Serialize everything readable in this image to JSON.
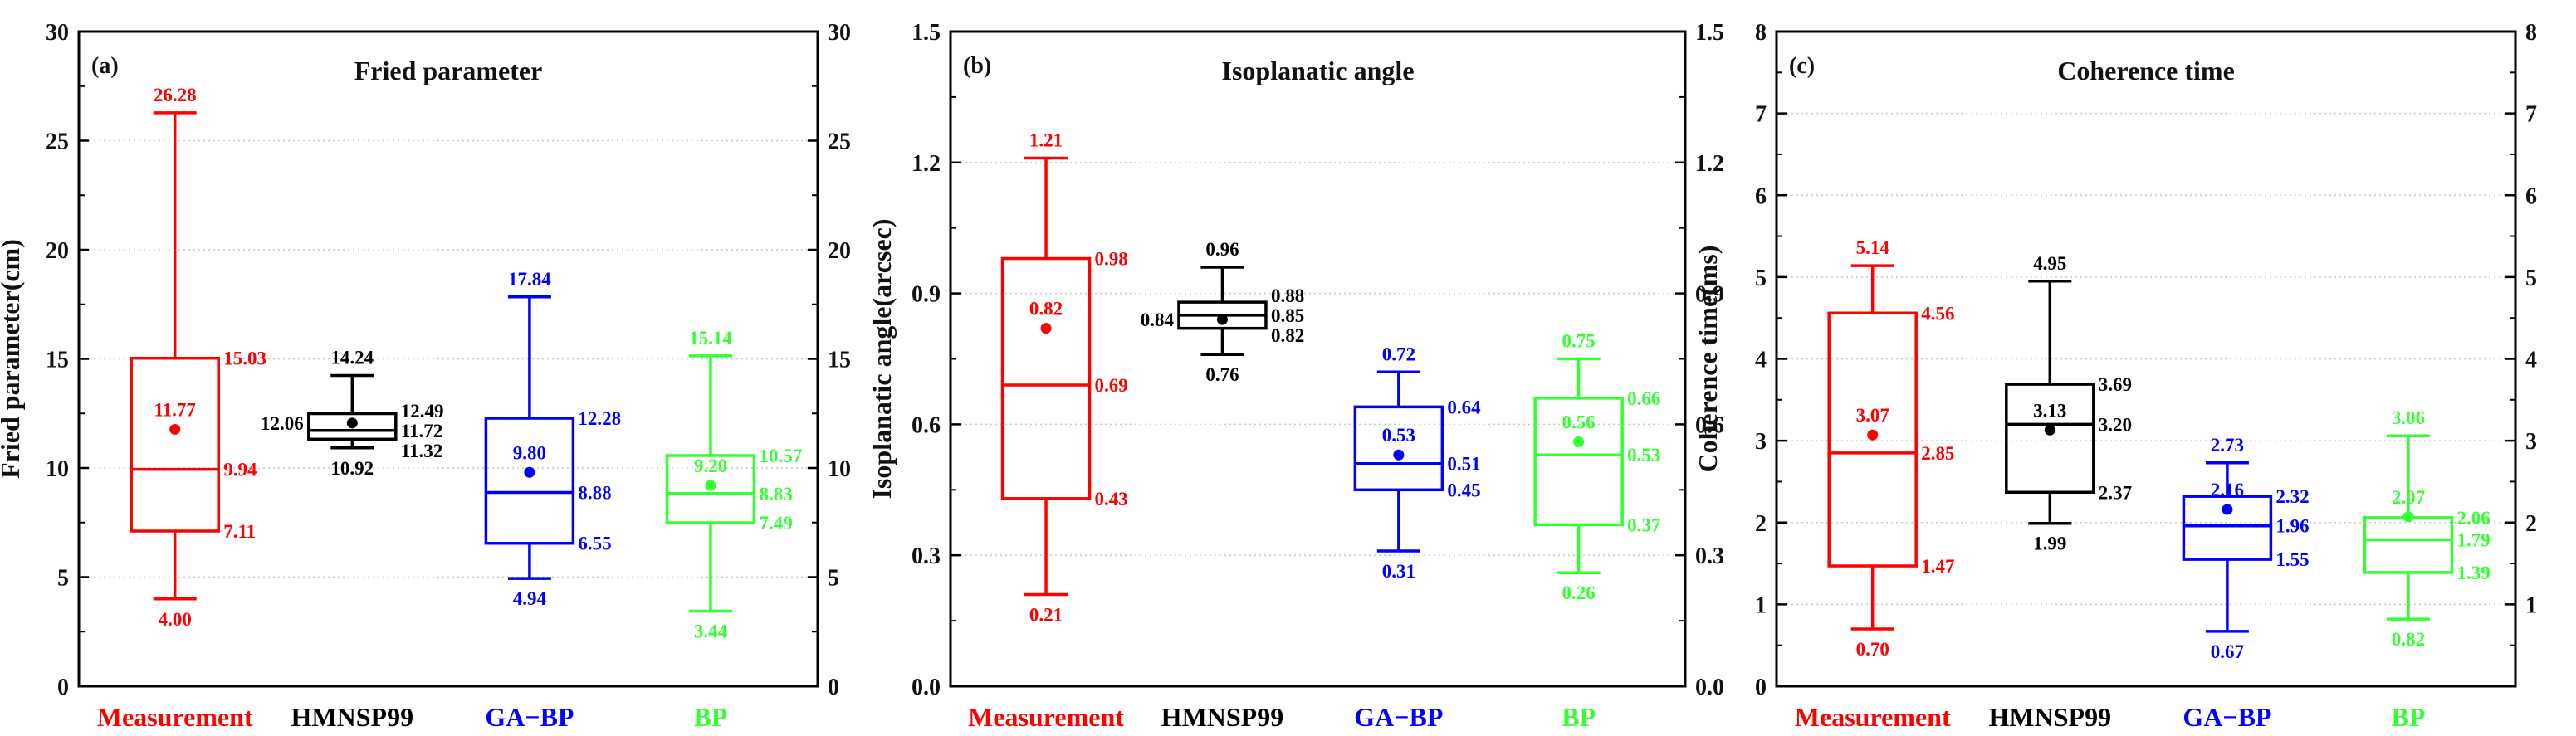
{
  "chart_data": [
    {
      "type": "box",
      "panel_letter": "(a)",
      "title": "Fried parameter",
      "ylabel": "Fried parameter(cm)",
      "ylim": [
        0,
        30
      ],
      "yticks": [
        "0",
        "5",
        "10",
        "15",
        "20",
        "25",
        "30"
      ],
      "right_yticks": [
        "0",
        "5",
        "10",
        "15",
        "20",
        "25",
        "30"
      ],
      "grid": "horizontal-dotted",
      "categories": [
        {
          "name": "Measurement",
          "color": "#ff0000",
          "min": 4.0,
          "q1": 7.11,
          "median": 9.94,
          "q3": 15.03,
          "max": 26.28,
          "mean": 11.77,
          "labels": {
            "min": "4.00",
            "q1": "7.11",
            "median": "9.94",
            "q3": "15.03",
            "max": "26.28",
            "mean": "11.77"
          }
        },
        {
          "name": "HMNSP99",
          "color": "#000000",
          "min": 10.92,
          "q1": 11.32,
          "median": 11.72,
          "q3": 12.49,
          "max": 14.24,
          "mean": 12.06,
          "labels": {
            "min": "10.92",
            "q1": "11.32",
            "median": "11.72",
            "q3": "12.49",
            "max": "14.24",
            "mean": "12.06"
          }
        },
        {
          "name": "GA−BP",
          "color": "#0000ff",
          "min": 4.94,
          "q1": 6.55,
          "median": 8.88,
          "q3": 12.28,
          "max": 17.84,
          "mean": 9.8,
          "labels": {
            "min": "4.94",
            "q1": "6.55",
            "median": "8.88",
            "q3": "12.28",
            "max": "17.84",
            "mean": "9.80"
          }
        },
        {
          "name": "BP",
          "color": "#33ff33",
          "min": 3.44,
          "q1": 7.49,
          "median": 8.83,
          "q3": 10.57,
          "max": 15.14,
          "mean": 9.2,
          "labels": {
            "min": "3.44",
            "q1": "7.49",
            "median": "8.83",
            "q3": "10.57",
            "max": "15.14",
            "mean": "9.20"
          }
        }
      ]
    },
    {
      "type": "box",
      "panel_letter": "(b)",
      "title": "Isoplanatic angle",
      "ylabel": "Isoplanatic angle(arcsec)",
      "ylim": [
        0,
        1.5
      ],
      "yticks": [
        "0.0",
        "0.3",
        "0.6",
        "0.9",
        "1.2",
        "1.5"
      ],
      "right_yticks": [
        "0.0",
        "0.3",
        "0.6",
        "0.9",
        "1.2",
        "1.5"
      ],
      "grid": "horizontal-dotted",
      "categories": [
        {
          "name": "Measurement",
          "color": "#ff0000",
          "min": 0.21,
          "q1": 0.43,
          "median": 0.69,
          "q3": 0.98,
          "max": 1.21,
          "mean": 0.82,
          "labels": {
            "min": "0.21",
            "q1": "0.43",
            "median": "0.69",
            "q3": "0.98",
            "max": "1.21",
            "mean": "0.82"
          }
        },
        {
          "name": "HMNSP99",
          "color": "#000000",
          "min": 0.76,
          "q1": 0.82,
          "median": 0.85,
          "q3": 0.88,
          "max": 0.96,
          "mean": 0.84,
          "labels": {
            "min": "0.76",
            "q1": "0.82",
            "median": "0.85",
            "q3": "0.88",
            "max": "0.96",
            "mean": "0.84"
          }
        },
        {
          "name": "GA−BP",
          "color": "#0000ff",
          "min": 0.31,
          "q1": 0.45,
          "median": 0.51,
          "q3": 0.64,
          "max": 0.72,
          "mean": 0.53,
          "labels": {
            "min": "0.31",
            "q1": "0.45",
            "median": "0.51",
            "q3": "0.64",
            "max": "0.72",
            "mean": "0.53"
          }
        },
        {
          "name": "BP",
          "color": "#33ff33",
          "min": 0.26,
          "q1": 0.37,
          "median": 0.53,
          "q3": 0.66,
          "max": 0.75,
          "mean": 0.56,
          "labels": {
            "min": "0.26",
            "q1": "0.37",
            "median": "0.53",
            "q3": "0.66",
            "max": "0.75",
            "mean": "0.56"
          }
        }
      ]
    },
    {
      "type": "box",
      "panel_letter": "(c)",
      "title": "Coherence time",
      "ylabel": "Coherence time(ms)",
      "ylim": [
        0,
        8
      ],
      "yticks": [
        "0",
        "1",
        "2",
        "3",
        "4",
        "5",
        "6",
        "7",
        "8"
      ],
      "right_yticks": [
        "1",
        "2",
        "3",
        "4",
        "5",
        "6",
        "7",
        "8"
      ],
      "grid": "horizontal-dotted",
      "categories": [
        {
          "name": "Measurement",
          "color": "#ff0000",
          "min": 0.7,
          "q1": 1.47,
          "median": 2.85,
          "q3": 4.56,
          "max": 5.14,
          "mean": 3.07,
          "labels": {
            "min": "0.70",
            "q1": "1.47",
            "median": "2.85",
            "q3": "4.56",
            "max": "5.14",
            "mean": "3.07"
          }
        },
        {
          "name": "HMNSP99",
          "color": "#000000",
          "min": 1.99,
          "q1": 2.37,
          "median": 3.2,
          "q3": 3.69,
          "max": 4.95,
          "mean": 3.13,
          "labels": {
            "min": "1.99",
            "q1": "2.37",
            "median": "3.20",
            "q3": "3.69",
            "max": "4.95",
            "mean": "3.13"
          }
        },
        {
          "name": "GA−BP",
          "color": "#0000ff",
          "min": 0.67,
          "q1": 1.55,
          "median": 1.96,
          "q3": 2.32,
          "max": 2.73,
          "mean": 2.16,
          "labels": {
            "min": "0.67",
            "q1": "1.55",
            "median": "1.96",
            "q3": "2.32",
            "max": "2.73",
            "mean": "2.16"
          }
        },
        {
          "name": "BP",
          "color": "#33ff33",
          "min": 0.82,
          "q1": 1.39,
          "median": 1.79,
          "q3": 2.06,
          "max": 3.06,
          "mean": 2.07,
          "labels": {
            "min": "0.82",
            "q1": "1.39",
            "median": "1.79",
            "q3": "2.06",
            "max": "3.06",
            "mean": "2.07"
          }
        }
      ]
    }
  ]
}
